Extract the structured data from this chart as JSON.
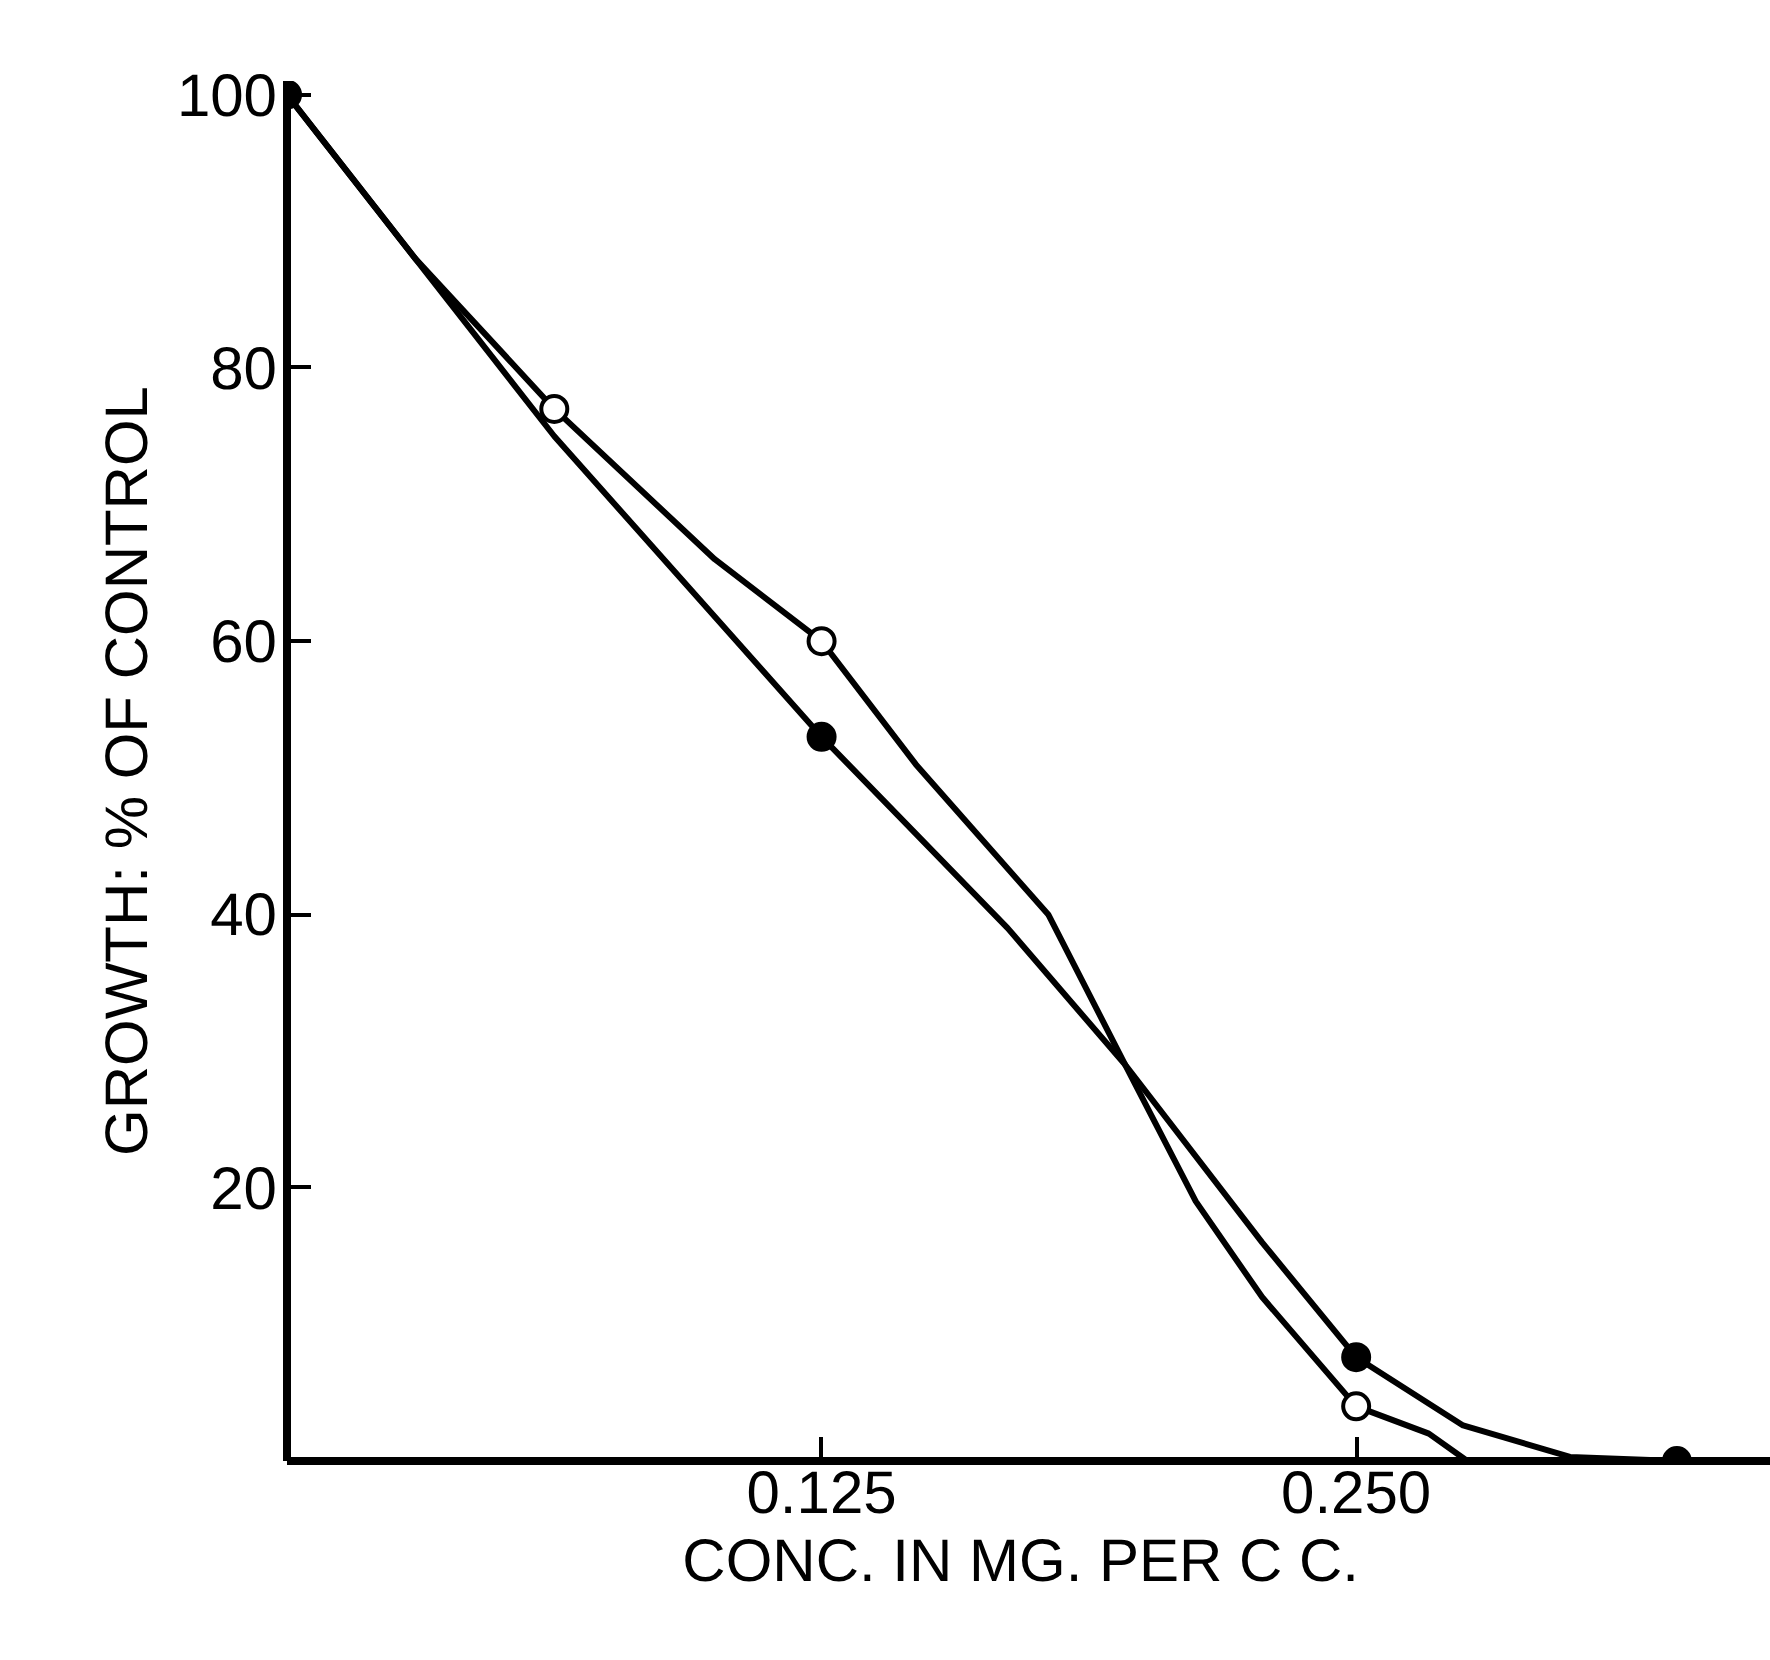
{
  "chart_data": {
    "type": "line",
    "xlabel": "CONC. IN MG. PER  C C.",
    "ylabel": "GROWTH: % OF CONTROL",
    "xlim": [
      0,
      0.347
    ],
    "ylim": [
      0,
      101
    ],
    "xticks": [
      0.125,
      {
        "value": 0.25,
        "label": "0.250"
      }
    ],
    "yticks": [
      20,
      40,
      60,
      80,
      100
    ],
    "grid": false,
    "series": [
      {
        "color": "#000000",
        "x": [
          0,
          0.03,
          0.0625,
          0.1,
          0.125,
          0.147,
          0.178,
          0.196,
          0.2125,
          0.228,
          0.25,
          0.267,
          0.276
        ],
        "values": [
          100,
          88,
          77,
          66,
          60,
          51,
          40,
          29,
          19,
          12,
          4,
          2,
          0
        ]
      },
      {
        "color": "#000000",
        "x": [
          0,
          0.0625,
          0.125,
          0.1685,
          0.196,
          0.228,
          0.25,
          0.275,
          0.3,
          0.325
        ],
        "values": [
          100,
          75,
          53,
          39,
          29,
          16,
          7.6,
          2.6,
          0.3,
          0
        ]
      },
      {
        "type": "scatter",
        "marker": "circle",
        "color": "#ffffff",
        "x": [
          0.0625,
          0.125,
          0.25
        ],
        "values": [
          77,
          60,
          4
        ]
      },
      {
        "type": "scatter",
        "marker": "circle",
        "color": "#000000",
        "x": [
          0,
          0.125,
          0.25,
          0.325
        ],
        "values": [
          100,
          53,
          7.6,
          0
        ]
      }
    ]
  }
}
